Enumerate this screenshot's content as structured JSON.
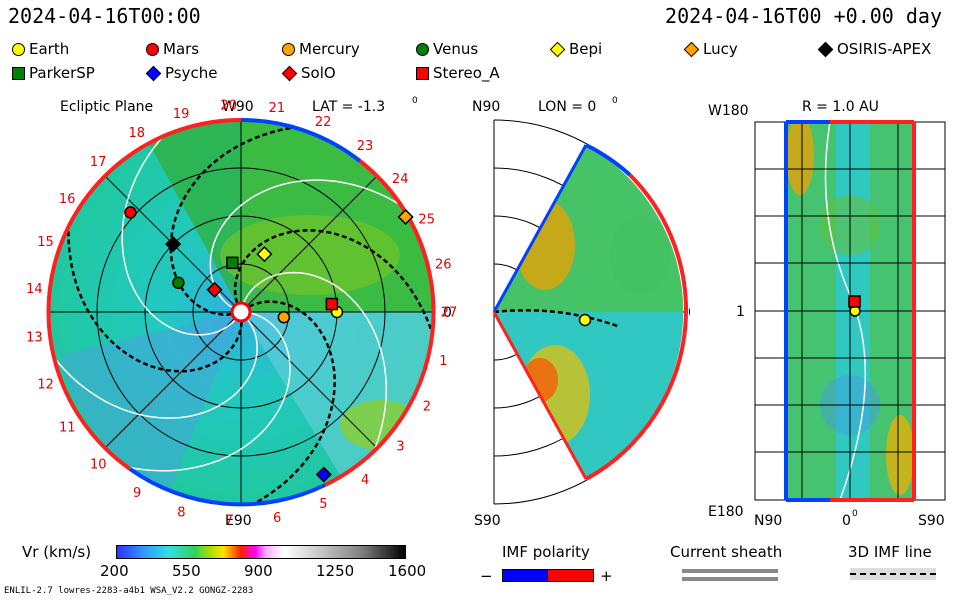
{
  "header": {
    "left_time": "2024-04-16T00:00",
    "right_time": "2024-04-16T00 +0.00 day"
  },
  "legend": [
    {
      "name": "Earth",
      "shape": "circle",
      "color": "#ffff00"
    },
    {
      "name": "Mars",
      "shape": "circle",
      "color": "#ff0000"
    },
    {
      "name": "Mercury",
      "shape": "circle",
      "color": "#ffa500"
    },
    {
      "name": "Venus",
      "shape": "circle",
      "color": "#008000"
    },
    {
      "name": "Bepi",
      "shape": "diamond",
      "color": "#ffff00"
    },
    {
      "name": "Lucy",
      "shape": "diamond",
      "color": "#ffa500"
    },
    {
      "name": "OSIRIS-APEX",
      "shape": "diamond",
      "color": "#000000"
    },
    {
      "name": "ParkerSP",
      "shape": "square",
      "color": "#008000"
    },
    {
      "name": "Psyche",
      "shape": "diamond",
      "color": "#0000ff"
    },
    {
      "name": "SolO",
      "shape": "diamond",
      "color": "#ff0000"
    },
    {
      "name": "Stereo_A",
      "shape": "square",
      "color": "#ff0000"
    }
  ],
  "panels": {
    "ecliptic": {
      "title": "Ecliptic Plane",
      "lat_label": "LAT = -1.3",
      "deg": "0",
      "w90": "W90",
      "e90": "E90",
      "zero": "0",
      "carrington_labels": [
        "1",
        "2",
        "3",
        "4",
        "5",
        "6",
        "7",
        "8",
        "9",
        "10",
        "11",
        "12",
        "13",
        "14",
        "15",
        "16",
        "17",
        "18",
        "19",
        "20",
        "21",
        "22",
        "23",
        "24",
        "25",
        "26",
        "27"
      ]
    },
    "meridional": {
      "n90": "N90",
      "s90": "S90",
      "lon_label": "LON = 0",
      "deg": "0",
      "zero": "0"
    },
    "map": {
      "w180": "W180",
      "e180": "E180",
      "one": "1",
      "r_label": "R = 1.0 AU",
      "x_labels": [
        "N90",
        "0",
        "S90"
      ],
      "deg": "0"
    }
  },
  "colorbar": {
    "label": "Vr (km/s)",
    "ticks": [
      "200",
      "550",
      "900",
      "1250",
      "1600"
    ]
  },
  "imf": {
    "label": "IMF polarity",
    "minus": "−",
    "plus": "+",
    "neg_color": "#0000ff",
    "pos_color": "#ff0000"
  },
  "sheath": {
    "label": "Current sheath"
  },
  "imf3d": {
    "label": "3D IMF line"
  },
  "footer_left": "ENLIL-2.7 lowres-2283-a4b1 WSA_V2.2 GONGZ-2283",
  "chart_data": [
    {
      "type": "scatter",
      "title": "Ecliptic Plane",
      "subtitle": "LAT = -1.3",
      "bodies": [
        {
          "name": "Earth",
          "r_au": 1.0,
          "lon_deg": 0
        },
        {
          "name": "Mars",
          "r_au": 1.55,
          "lon_deg": 138
        },
        {
          "name": "Mercury",
          "r_au": 0.45,
          "lon_deg": -7
        },
        {
          "name": "Venus",
          "r_au": 0.72,
          "lon_deg": 155
        },
        {
          "name": "Bepi",
          "r_au": 0.65,
          "lon_deg": 68
        },
        {
          "name": "Lucy",
          "r_au": 1.98,
          "lon_deg": 30
        },
        {
          "name": "OSIRIS-APEX",
          "r_au": 1.0,
          "lon_deg": 135
        },
        {
          "name": "ParkerSP",
          "r_au": 0.52,
          "lon_deg": 100
        },
        {
          "name": "Psyche",
          "r_au": 1.9,
          "lon_deg": -63
        },
        {
          "name": "SolO",
          "r_au": 0.36,
          "lon_deg": 140
        },
        {
          "name": "Stereo_A",
          "r_au": 0.95,
          "lon_deg": 5
        }
      ]
    },
    {
      "type": "heatmap",
      "title": "Vr (km/s)",
      "colorbar_range": [
        200,
        1600
      ]
    }
  ]
}
